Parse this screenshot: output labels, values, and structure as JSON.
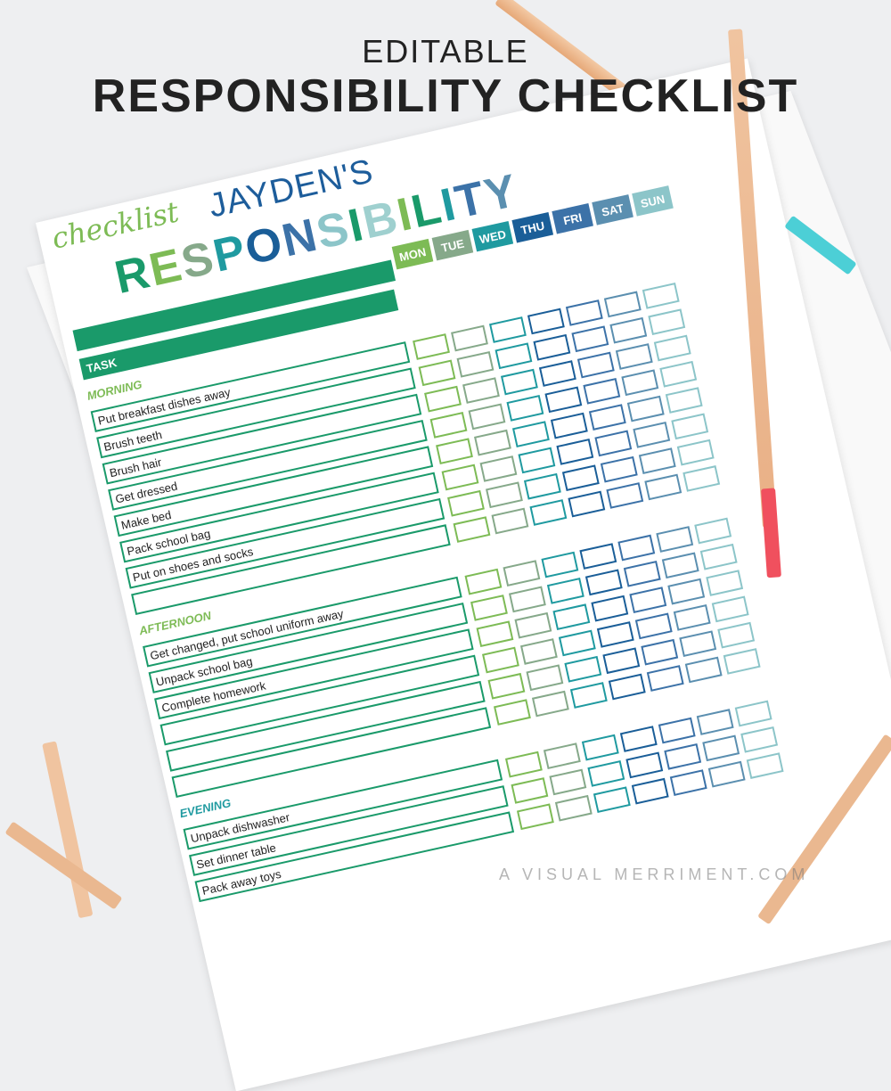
{
  "headline": {
    "line1": "EDITABLE",
    "line2": "RESPONSIBILITY CHECKLIST"
  },
  "sheet": {
    "name": "JAYDEN'S",
    "title": "RESPONSIBILITY",
    "subtitle": "checklist",
    "days": [
      "MON",
      "TUE",
      "WED",
      "THU",
      "FRI",
      "SAT",
      "SUN"
    ],
    "day_colors": [
      "#7dbb55",
      "#86a98a",
      "#1f9aa0",
      "#1a5e98",
      "#3c72a8",
      "#5b8fb0",
      "#8cc5c9"
    ],
    "task_header": "TASK",
    "sections": [
      {
        "label": "MORNING",
        "color": "#7dbb55",
        "tasks": [
          "Put breakfast dishes away",
          "Brush teeth",
          "Brush hair",
          "Get dressed",
          "Make bed",
          "Pack school bag",
          "Put on shoes and socks",
          ""
        ]
      },
      {
        "label": "AFTERNOON",
        "color": "#7dbb55",
        "tasks": [
          "Get changed, put school uniform away",
          "Unpack school bag",
          "Complete homework",
          "",
          "",
          ""
        ]
      },
      {
        "label": "EVENING",
        "color": "#1f9aa0",
        "tasks": [
          "Unpack dishwasher",
          "Set dinner table",
          "Pack away toys"
        ]
      }
    ]
  },
  "watermark": "A VISUAL MERRIMENT.COM"
}
